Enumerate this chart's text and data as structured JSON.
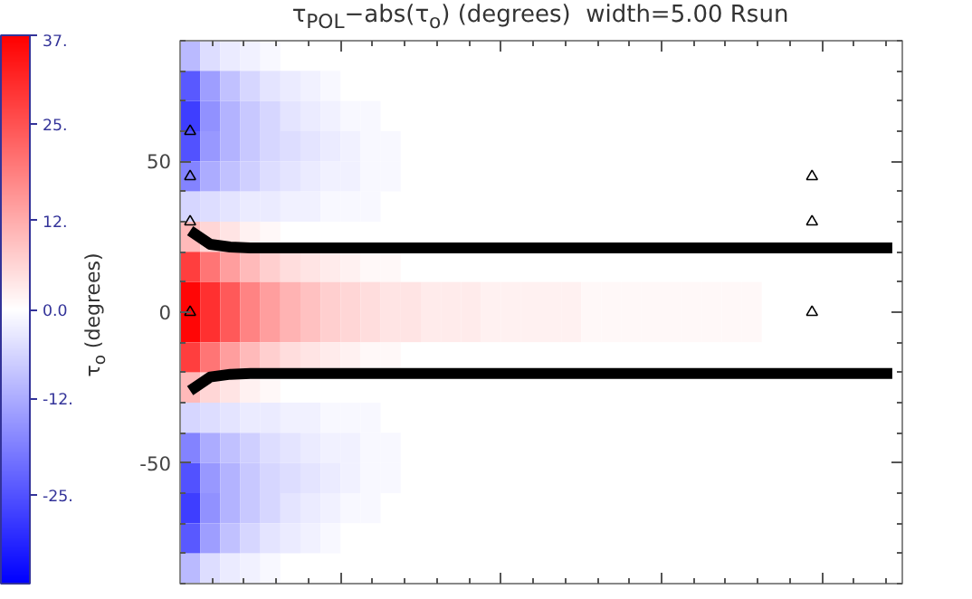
{
  "chart_data": {
    "type": "heatmap",
    "title": "τ$_{POL}$−abs(τ$_{o}$) (degrees)   width=5.00 Rsun",
    "ylabel": "τ$_{o}$ (degrees)",
    "categories": [
      null,
      null,
      null,
      null,
      null,
      null,
      null,
      null,
      null,
      null,
      null,
      null,
      null,
      null,
      null,
      null,
      null,
      null,
      null,
      null,
      null,
      null,
      null,
      null,
      null,
      null,
      null,
      null,
      null,
      null,
      null,
      null,
      null,
      null,
      null,
      null
    ],
    "ylim": [
      -90,
      90
    ],
    "yticks": [
      -50,
      0,
      50
    ],
    "tick_labels": "y",
    "grid": false,
    "clim": [
      -37,
      37
    ],
    "cticks": [
      {
        "value": -25,
        "label": "-25."
      },
      {
        "value": -12,
        "label": "-12."
      },
      {
        "value": 0,
        "label": "0.0"
      },
      {
        "value": 12,
        "label": "12."
      },
      {
        "value": 25,
        "label": "25."
      },
      {
        "value": 37,
        "label": "37."
      }
    ],
    "cells": [
      [
        -10,
        -5,
        -3,
        -2,
        -1,
        0,
        0,
        0,
        0,
        0,
        0,
        0,
        0,
        0,
        0,
        0,
        0,
        0,
        0,
        0,
        0,
        0,
        0,
        0,
        0,
        0,
        0,
        0,
        0,
        0,
        0,
        0,
        0,
        0,
        0,
        0
      ],
      [
        -24,
        -14,
        -9,
        -6,
        -4,
        -3,
        -2,
        -1,
        0,
        0,
        0,
        0,
        0,
        0,
        0,
        0,
        0,
        0,
        0,
        0,
        0,
        0,
        0,
        0,
        0,
        0,
        0,
        0,
        0,
        0,
        0,
        0,
        0,
        0,
        0,
        0
      ],
      [
        -28,
        -16,
        -11,
        -8,
        -6,
        -4,
        -3,
        -2,
        -1,
        -1,
        0,
        0,
        0,
        0,
        0,
        0,
        0,
        0,
        0,
        0,
        0,
        0,
        0,
        0,
        0,
        0,
        0,
        0,
        0,
        0,
        0,
        0,
        0,
        0,
        0,
        0
      ],
      [
        -25,
        -15,
        -11,
        -8,
        -6,
        -5,
        -4,
        -3,
        -2,
        -1,
        -1,
        0,
        0,
        0,
        0,
        0,
        0,
        0,
        0,
        0,
        0,
        0,
        0,
        0,
        0,
        0,
        0,
        0,
        0,
        0,
        0,
        0,
        0,
        0,
        0,
        0
      ],
      [
        -18,
        -12,
        -9,
        -7,
        -5,
        -4,
        -3,
        -2,
        -2,
        -1,
        -1,
        0,
        0,
        0,
        0,
        0,
        0,
        0,
        0,
        0,
        0,
        0,
        0,
        0,
        0,
        0,
        0,
        0,
        0,
        0,
        0,
        0,
        0,
        0,
        0,
        0
      ],
      [
        -6,
        -5,
        -4,
        -3,
        -3,
        -2,
        -2,
        -1,
        -1,
        -1,
        0,
        0,
        0,
        0,
        0,
        0,
        0,
        0,
        0,
        0,
        0,
        0,
        0,
        0,
        0,
        0,
        0,
        0,
        0,
        0,
        0,
        0,
        0,
        0,
        0,
        0
      ],
      [
        10,
        6,
        4,
        2,
        1,
        0,
        0,
        0,
        0,
        0,
        0,
        0,
        0,
        0,
        0,
        0,
        0,
        0,
        0,
        0,
        0,
        0,
        0,
        0,
        0,
        0,
        0,
        0,
        0,
        0,
        0,
        0,
        0,
        0,
        0,
        0
      ],
      [
        28,
        20,
        14,
        10,
        7,
        5,
        4,
        3,
        2,
        1,
        1,
        0,
        0,
        0,
        0,
        0,
        0,
        0,
        0,
        0,
        0,
        0,
        0,
        0,
        0,
        0,
        0,
        0,
        0,
        0,
        0,
        0,
        0,
        0,
        0,
        0
      ],
      [
        36,
        30,
        24,
        18,
        14,
        11,
        9,
        7,
        6,
        5,
        4,
        4,
        3,
        3,
        3,
        2,
        2,
        2,
        2,
        2,
        1,
        1,
        1,
        1,
        1,
        1,
        1,
        1,
        1,
        0,
        0,
        0,
        0,
        0,
        0,
        0
      ],
      [
        36,
        30,
        24,
        18,
        14,
        11,
        9,
        7,
        6,
        5,
        4,
        4,
        3,
        3,
        3,
        2,
        2,
        2,
        2,
        2,
        1,
        1,
        1,
        1,
        1,
        1,
        1,
        1,
        1,
        0,
        0,
        0,
        0,
        0,
        0,
        0
      ],
      [
        28,
        20,
        14,
        10,
        7,
        5,
        4,
        3,
        2,
        1,
        1,
        0,
        0,
        0,
        0,
        0,
        0,
        0,
        0,
        0,
        0,
        0,
        0,
        0,
        0,
        0,
        0,
        0,
        0,
        0,
        0,
        0,
        0,
        0,
        0,
        0
      ],
      [
        10,
        6,
        4,
        2,
        1,
        0,
        0,
        0,
        0,
        0,
        0,
        0,
        0,
        0,
        0,
        0,
        0,
        0,
        0,
        0,
        0,
        0,
        0,
        0,
        0,
        0,
        0,
        0,
        0,
        0,
        0,
        0,
        0,
        0,
        0,
        0
      ],
      [
        -6,
        -5,
        -4,
        -3,
        -3,
        -2,
        -2,
        -1,
        -1,
        -1,
        0,
        0,
        0,
        0,
        0,
        0,
        0,
        0,
        0,
        0,
        0,
        0,
        0,
        0,
        0,
        0,
        0,
        0,
        0,
        0,
        0,
        0,
        0,
        0,
        0,
        0
      ],
      [
        -18,
        -12,
        -9,
        -7,
        -5,
        -4,
        -3,
        -2,
        -2,
        -1,
        -1,
        0,
        0,
        0,
        0,
        0,
        0,
        0,
        0,
        0,
        0,
        0,
        0,
        0,
        0,
        0,
        0,
        0,
        0,
        0,
        0,
        0,
        0,
        0,
        0,
        0
      ],
      [
        -25,
        -15,
        -11,
        -8,
        -6,
        -5,
        -4,
        -3,
        -2,
        -1,
        -1,
        0,
        0,
        0,
        0,
        0,
        0,
        0,
        0,
        0,
        0,
        0,
        0,
        0,
        0,
        0,
        0,
        0,
        0,
        0,
        0,
        0,
        0,
        0,
        0,
        0
      ],
      [
        -28,
        -16,
        -11,
        -8,
        -6,
        -4,
        -3,
        -2,
        -1,
        -1,
        0,
        0,
        0,
        0,
        0,
        0,
        0,
        0,
        0,
        0,
        0,
        0,
        0,
        0,
        0,
        0,
        0,
        0,
        0,
        0,
        0,
        0,
        0,
        0,
        0,
        0
      ],
      [
        -24,
        -14,
        -9,
        -6,
        -4,
        -3,
        -2,
        -1,
        0,
        0,
        0,
        0,
        0,
        0,
        0,
        0,
        0,
        0,
        0,
        0,
        0,
        0,
        0,
        0,
        0,
        0,
        0,
        0,
        0,
        0,
        0,
        0,
        0,
        0,
        0,
        0
      ],
      [
        -10,
        -5,
        -3,
        -2,
        -1,
        0,
        0,
        0,
        0,
        0,
        0,
        0,
        0,
        0,
        0,
        0,
        0,
        0,
        0,
        0,
        0,
        0,
        0,
        0,
        0,
        0,
        0,
        0,
        0,
        0,
        0,
        0,
        0,
        0,
        0,
        0
      ]
    ],
    "series": [
      {
        "type": "line",
        "color": "#000000",
        "values": [
          27,
          22.5,
          21.6,
          21.3,
          21.3,
          21.3,
          21.3,
          21.3,
          21.3,
          21.3,
          21.3,
          21.3,
          21.3,
          21.3,
          21.3,
          21.3,
          21.3,
          21.3,
          21.3,
          21.3,
          21.3,
          21.3,
          21.3,
          21.3,
          21.3,
          21.3,
          21.3,
          21.3,
          21.3,
          21.3,
          21.3,
          21.3,
          21.3,
          21.3,
          21.3,
          21.3
        ]
      },
      {
        "type": "line",
        "color": "#000000",
        "values": [
          -26,
          -21.5,
          -20.6,
          -20.3,
          -20.3,
          -20.3,
          -20.3,
          -20.3,
          -20.3,
          -20.3,
          -20.3,
          -20.3,
          -20.3,
          -20.3,
          -20.3,
          -20.3,
          -20.3,
          -20.3,
          -20.3,
          -20.3,
          -20.3,
          -20.3,
          -20.3,
          -20.3,
          -20.3,
          -20.3,
          -20.3,
          -20.3,
          -20.3,
          -20.3,
          -20.3,
          -20.3,
          -20.3,
          -20.3,
          -20.3,
          -20.3
        ]
      },
      {
        "type": "scatter",
        "marker": "triangle",
        "color": "#000000",
        "values": [
          60,
          null,
          null,
          null,
          null,
          null,
          null,
          null,
          null,
          null,
          null,
          null,
          null,
          null,
          null,
          null,
          null,
          null,
          null,
          null,
          null,
          null,
          null,
          null,
          null,
          null,
          null,
          null,
          null,
          null,
          null,
          45,
          null,
          null,
          null,
          null
        ]
      },
      {
        "type": "scatter",
        "marker": "triangle",
        "color": "#000000",
        "values": [
          45,
          null,
          null,
          null,
          null,
          null,
          null,
          null,
          null,
          null,
          null,
          null,
          null,
          null,
          null,
          null,
          null,
          null,
          null,
          null,
          null,
          null,
          null,
          null,
          null,
          null,
          null,
          null,
          null,
          null,
          null,
          30,
          null,
          null,
          null,
          null
        ]
      },
      {
        "type": "scatter",
        "marker": "triangle",
        "color": "#000000",
        "values": [
          30,
          null,
          null,
          null,
          null,
          null,
          null,
          null,
          null,
          null,
          null,
          null,
          null,
          null,
          null,
          null,
          null,
          null,
          null,
          null,
          null,
          null,
          null,
          null,
          null,
          null,
          null,
          null,
          null,
          null,
          null,
          0,
          null,
          null,
          null,
          null
        ]
      },
      {
        "type": "scatter",
        "marker": "triangle",
        "color": "#000000",
        "values": [
          0,
          null,
          null,
          null,
          null,
          null,
          null,
          null,
          null,
          null,
          null,
          null,
          null,
          null,
          null,
          null,
          null,
          null,
          null,
          null,
          null,
          null,
          null,
          null,
          null,
          null,
          null,
          null,
          null,
          null,
          null,
          null,
          null,
          null,
          null,
          null
        ]
      }
    ]
  }
}
